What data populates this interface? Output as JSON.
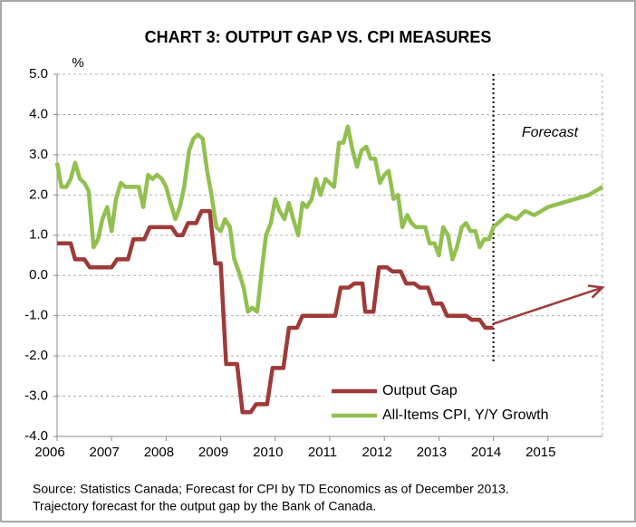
{
  "chart_data": {
    "type": "line",
    "title": "CHART 3: OUTPUT GAP VS. CPI MEASURES",
    "y_label": "%",
    "annotation": "Forecast",
    "source": [
      "Source:  Statistics Canada; Forecast for CPI by TD Economics as of December 2013.",
      "Trajectory forecast for the output gap by the Bank of Canada."
    ],
    "xlim": [
      2006,
      2016
    ],
    "xticks": [
      2006,
      2007,
      2008,
      2009,
      2010,
      2011,
      2012,
      2013,
      2014,
      2015
    ],
    "ylim": [
      -4,
      5
    ],
    "yticks": [
      {
        "value": 5,
        "label": "5.0"
      },
      {
        "value": 4,
        "label": "4.0"
      },
      {
        "value": 3,
        "label": "3.0"
      },
      {
        "value": 2,
        "label": "2.0"
      },
      {
        "value": 1,
        "label": "1.0"
      },
      {
        "value": 0,
        "label": "0.0"
      },
      {
        "value": -1,
        "label": "-1.0"
      },
      {
        "value": -2,
        "label": "-2.0"
      },
      {
        "value": -3,
        "label": "-3.0"
      },
      {
        "value": -4,
        "label": "-4.0"
      }
    ],
    "grid": true,
    "legend": "lower right",
    "forecast_line": {
      "x": 2014,
      "y": [
        -2.2,
        5
      ]
    },
    "arrow": {
      "color": "#9e3a38",
      "x": [
        2014,
        2016
      ],
      "y": [
        -1.2,
        -0.3
      ]
    },
    "series": [
      {
        "name": "Output Gap",
        "color": "#9e3a38",
        "x": [
          2006.0,
          2006.25,
          2006.33,
          2006.5,
          2006.6,
          2007.0,
          2007.1,
          2007.3,
          2007.4,
          2007.6,
          2007.7,
          2008.1,
          2008.2,
          2008.3,
          2008.4,
          2008.55,
          2008.65,
          2008.8,
          2008.9,
          2009.0,
          2009.1,
          2009.3,
          2009.4,
          2009.55,
          2009.65,
          2009.85,
          2009.95,
          2010.15,
          2010.25,
          2010.4,
          2010.5,
          2011.1,
          2011.2,
          2011.35,
          2011.45,
          2011.6,
          2011.65,
          2011.8,
          2011.9,
          2012.05,
          2012.15,
          2012.3,
          2012.4,
          2012.55,
          2012.65,
          2012.8,
          2012.9,
          2013.05,
          2013.15,
          2013.5,
          2013.6,
          2013.75,
          2013.85,
          2014.0
        ],
        "values": [
          0.8,
          0.8,
          0.4,
          0.4,
          0.2,
          0.2,
          0.4,
          0.4,
          0.9,
          0.9,
          1.2,
          1.2,
          1.0,
          1.0,
          1.3,
          1.3,
          1.6,
          1.6,
          0.3,
          0.3,
          -2.2,
          -2.2,
          -3.4,
          -3.4,
          -3.2,
          -3.2,
          -2.3,
          -2.3,
          -1.3,
          -1.3,
          -1.0,
          -1.0,
          -0.3,
          -0.3,
          -0.2,
          -0.2,
          -0.9,
          -0.9,
          0.2,
          0.2,
          0.1,
          0.1,
          -0.2,
          -0.2,
          -0.3,
          -0.3,
          -0.7,
          -0.7,
          -1.0,
          -1.0,
          -1.1,
          -1.1,
          -1.3,
          -1.3
        ]
      },
      {
        "name": "All-Items CPI, Y/Y Growth",
        "color": "#92c050",
        "x": [
          2006.0,
          2006.08,
          2006.17,
          2006.25,
          2006.33,
          2006.42,
          2006.5,
          2006.58,
          2006.67,
          2006.75,
          2006.83,
          2006.92,
          2007.0,
          2007.08,
          2007.17,
          2007.25,
          2007.33,
          2007.42,
          2007.5,
          2007.58,
          2007.67,
          2007.75,
          2007.83,
          2007.92,
          2008.0,
          2008.08,
          2008.17,
          2008.25,
          2008.33,
          2008.42,
          2008.5,
          2008.58,
          2008.67,
          2008.75,
          2008.83,
          2008.92,
          2009.0,
          2009.08,
          2009.17,
          2009.25,
          2009.33,
          2009.42,
          2009.5,
          2009.58,
          2009.67,
          2009.75,
          2009.83,
          2009.92,
          2010.0,
          2010.08,
          2010.17,
          2010.25,
          2010.33,
          2010.42,
          2010.5,
          2010.58,
          2010.67,
          2010.75,
          2010.83,
          2010.92,
          2011.0,
          2011.08,
          2011.17,
          2011.25,
          2011.33,
          2011.42,
          2011.5,
          2011.58,
          2011.67,
          2011.75,
          2011.83,
          2011.92,
          2012.0,
          2012.08,
          2012.17,
          2012.25,
          2012.33,
          2012.42,
          2012.5,
          2012.58,
          2012.67,
          2012.75,
          2012.83,
          2012.92,
          2013.0,
          2013.08,
          2013.17,
          2013.25,
          2013.33,
          2013.42,
          2013.5,
          2013.58,
          2013.67,
          2013.75,
          2013.83,
          2013.92,
          2014.0,
          2014.08,
          2014.25,
          2014.42,
          2014.58,
          2014.75,
          2015.0,
          2015.25,
          2015.5,
          2015.75,
          2016.0
        ],
        "values": [
          2.8,
          2.2,
          2.2,
          2.4,
          2.8,
          2.4,
          2.3,
          2.1,
          0.7,
          0.9,
          1.4,
          1.7,
          1.1,
          1.9,
          2.3,
          2.2,
          2.2,
          2.2,
          2.2,
          1.7,
          2.5,
          2.4,
          2.5,
          2.4,
          2.2,
          1.8,
          1.4,
          1.7,
          2.2,
          3.1,
          3.4,
          3.5,
          3.4,
          2.6,
          2.0,
          1.2,
          1.1,
          1.4,
          1.2,
          0.4,
          0.1,
          -0.3,
          -0.9,
          -0.8,
          -0.9,
          0.1,
          1.0,
          1.3,
          1.9,
          1.6,
          1.4,
          1.8,
          1.4,
          1.0,
          1.8,
          1.7,
          1.9,
          2.4,
          2.0,
          2.4,
          2.3,
          2.2,
          3.3,
          3.3,
          3.7,
          3.1,
          2.7,
          3.1,
          3.2,
          2.9,
          2.9,
          2.3,
          2.5,
          2.6,
          1.9,
          2.0,
          1.2,
          1.5,
          1.3,
          1.2,
          1.2,
          1.2,
          0.8,
          0.8,
          0.5,
          1.2,
          1.0,
          0.4,
          0.7,
          1.2,
          1.3,
          1.1,
          1.1,
          0.7,
          0.9,
          0.9,
          1.2,
          1.3,
          1.5,
          1.4,
          1.6,
          1.5,
          1.7,
          1.8,
          1.9,
          2.0,
          2.2
        ]
      }
    ]
  }
}
